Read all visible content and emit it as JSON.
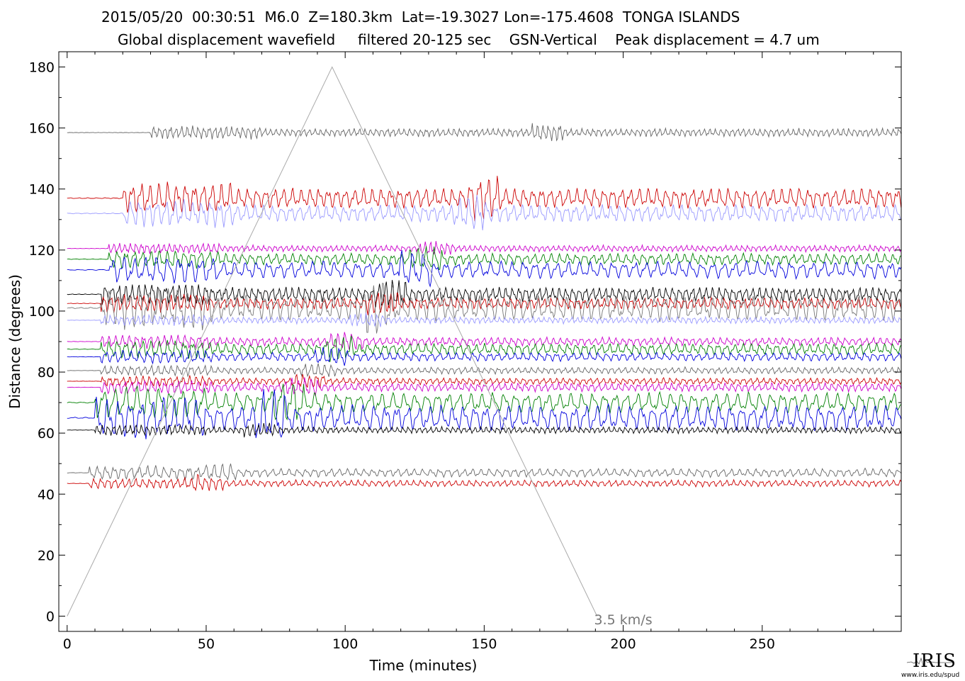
{
  "header": {
    "line1": "2015/05/20  00:30:51  M6.0  Z=180.3km  Lat=-19.3027 Lon=-175.4608  TONGA ISLANDS",
    "line2": "Global displacement wavefield     filtered 20-125 sec    GSN-Vertical    Peak displacement = 4.7 um"
  },
  "chart_data": {
    "type": "line",
    "xlabel": "Time (minutes)",
    "ylabel": "Distance (degrees)",
    "xlim": [
      -3,
      300
    ],
    "ylim": [
      -5,
      185
    ],
    "xticks": [
      0,
      50,
      100,
      150,
      200,
      250
    ],
    "yticks": [
      0,
      20,
      40,
      60,
      80,
      100,
      120,
      140,
      160,
      180
    ],
    "grid": false,
    "annotations": [
      {
        "text": "3.5 km/s",
        "x": 200,
        "y": -2
      }
    ],
    "velocity_line": {
      "label": "3.5 km/s",
      "points": [
        [
          0,
          0
        ],
        [
          95.3,
          180
        ],
        [
          190.6,
          0
        ]
      ],
      "color": "#aaaaaa"
    },
    "series": [
      {
        "offset": 158.5,
        "color": "#666666",
        "amp": 1.5,
        "period": 2.0,
        "onset": 30
      },
      {
        "offset": 137.0,
        "color": "#cc0000",
        "amp": 3.5,
        "period": 3.2,
        "onset": 20
      },
      {
        "offset": 132.0,
        "color": "#9999ff",
        "amp": 3.0,
        "period": 3.2,
        "onset": 20
      },
      {
        "offset": 120.5,
        "color": "#cc00cc",
        "amp": 1.2,
        "period": 2.0,
        "onset": 15
      },
      {
        "offset": 117.0,
        "color": "#008000",
        "amp": 2.0,
        "period": 3.0,
        "onset": 15
      },
      {
        "offset": 113.5,
        "color": "#0000dd",
        "amp": 3.0,
        "period": 4.0,
        "onset": 15
      },
      {
        "offset": 105.5,
        "color": "#000000",
        "amp": 2.5,
        "period": 2.4,
        "onset": 12
      },
      {
        "offset": 102.5,
        "color": "#cc0000",
        "amp": 2.0,
        "period": 2.4,
        "onset": 12
      },
      {
        "offset": 101.0,
        "color": "#777777",
        "amp": 4.5,
        "period": 3.5,
        "onset": 12
      },
      {
        "offset": 97.0,
        "color": "#9999ff",
        "amp": 1.2,
        "period": 2.0,
        "onset": 12
      },
      {
        "offset": 90.0,
        "color": "#cc00cc",
        "amp": 1.5,
        "period": 2.5,
        "onset": 12
      },
      {
        "offset": 87.5,
        "color": "#008000",
        "amp": 2.0,
        "period": 3.0,
        "onset": 12
      },
      {
        "offset": 85.0,
        "color": "#0000dd",
        "amp": 1.5,
        "period": 3.0,
        "onset": 12
      },
      {
        "offset": 80.5,
        "color": "#666666",
        "amp": 1.2,
        "period": 2.4,
        "onset": 12
      },
      {
        "offset": 77.0,
        "color": "#cc0000",
        "amp": 1.2,
        "period": 2.4,
        "onset": 12
      },
      {
        "offset": 75.0,
        "color": "#cc00cc",
        "amp": 1.5,
        "period": 2.4,
        "onset": 12
      },
      {
        "offset": 70.0,
        "color": "#008000",
        "amp": 3.5,
        "period": 4.0,
        "onset": 10
      },
      {
        "offset": 65.0,
        "color": "#0000dd",
        "amp": 4.5,
        "period": 4.0,
        "onset": 10
      },
      {
        "offset": 61.0,
        "color": "#000000",
        "amp": 1.2,
        "period": 2.0,
        "onset": 10
      },
      {
        "offset": 47.0,
        "color": "#666666",
        "amp": 1.5,
        "period": 3.0,
        "onset": 8
      },
      {
        "offset": 43.5,
        "color": "#cc0000",
        "amp": 1.2,
        "period": 2.5,
        "onset": 8
      }
    ]
  },
  "logo": {
    "text": "IRIS",
    "url": "www.iris.edu/spud"
  }
}
